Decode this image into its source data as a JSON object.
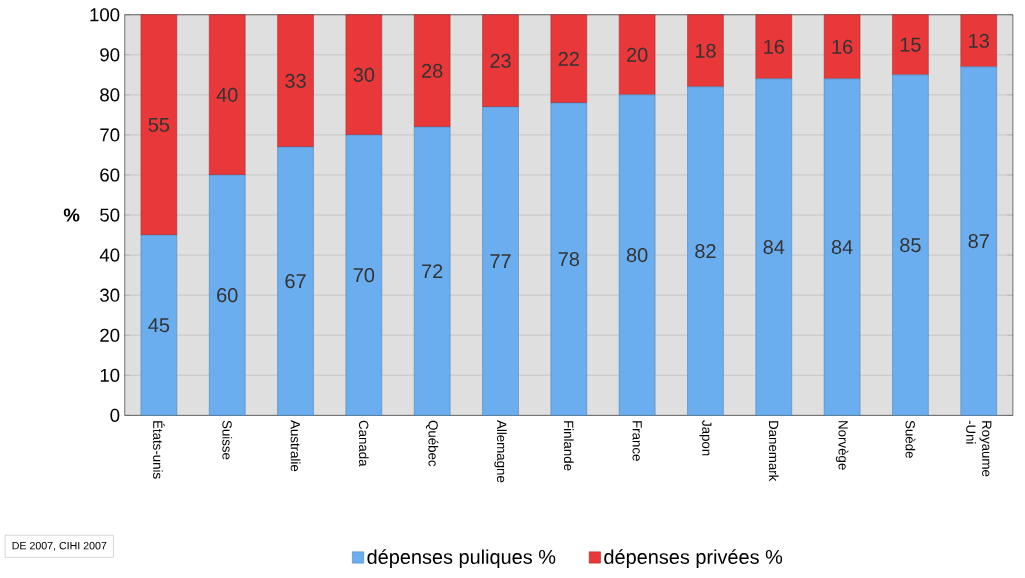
{
  "chart_data": {
    "type": "bar",
    "stacked": true,
    "ylabel": "%",
    "categories": [
      "États-unis",
      "Suisse",
      "Australie",
      "Canada",
      "Québec",
      "Allemagne",
      "Finlande",
      "France",
      "Japon",
      "Danemark",
      "Norvège",
      "Suède",
      "Royaume -Uni"
    ],
    "series": [
      {
        "name": "dépenses puliques  %",
        "color": "#6aaef0",
        "values": [
          45,
          60,
          67,
          70,
          72,
          77,
          78,
          80,
          82,
          84,
          84,
          85,
          87
        ]
      },
      {
        "name": "dépenses privées  %",
        "color": "#e8383a",
        "values": [
          55,
          40,
          33,
          30,
          28,
          23,
          22,
          20,
          18,
          16,
          16,
          15,
          13
        ]
      }
    ],
    "ylim": [
      0,
      100
    ],
    "yticks": [
      0,
      10,
      20,
      30,
      40,
      50,
      60,
      70,
      80,
      90,
      100
    ],
    "grid": "y",
    "legend": "bottom",
    "data_labels": true,
    "annotations": [
      "DE  2007, CIHI 2007"
    ]
  }
}
